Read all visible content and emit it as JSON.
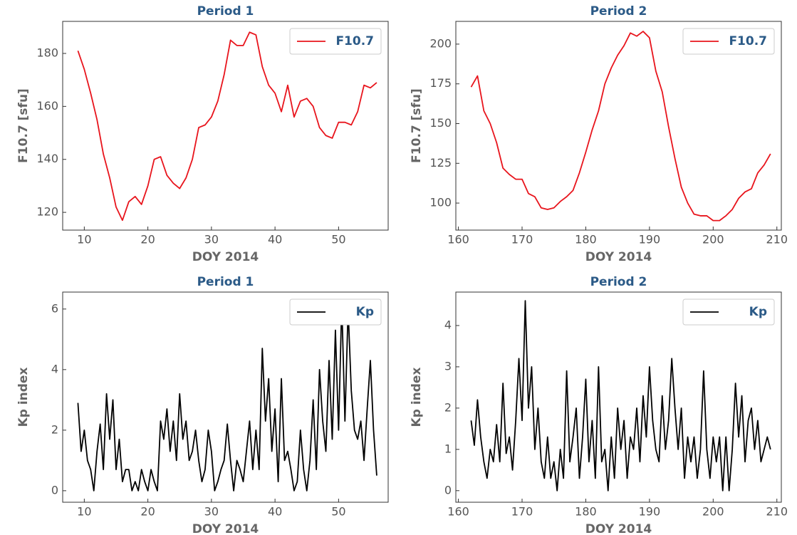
{
  "chart_data": [
    {
      "type": "line",
      "title": "Period 1",
      "x_label": "DOY 2014",
      "y_label": "F10.7 [sfu]",
      "legend": "upper right",
      "xlim": [
        6.6,
        57.8
      ],
      "ylim": [
        113.3,
        192.1
      ],
      "xticks": [
        10,
        20,
        30,
        40,
        50
      ],
      "yticks": [
        120,
        140,
        160,
        180
      ],
      "x": [
        9,
        10,
        11,
        12,
        13,
        14,
        15,
        16,
        17,
        18,
        19,
        20,
        21,
        22,
        23,
        24,
        25,
        26,
        27,
        28,
        29,
        30,
        31,
        32,
        33,
        34,
        35,
        36,
        37,
        38,
        39,
        40,
        41,
        42,
        43,
        44,
        45,
        46,
        47,
        48,
        49,
        50,
        51,
        52,
        53,
        54,
        55,
        56
      ],
      "series": [
        {
          "name": "F10.7",
          "color": "#e8141c",
          "values": [
            181,
            174,
            165,
            155,
            142,
            133,
            122,
            117,
            124,
            126,
            123,
            130,
            140,
            141,
            134,
            131,
            129,
            133,
            140,
            152,
            153,
            156,
            162,
            172,
            185,
            183,
            183,
            188,
            187,
            175,
            168,
            165,
            158,
            168,
            156,
            162,
            163,
            160,
            152,
            149,
            148,
            154,
            154,
            153,
            158,
            168,
            167,
            169
          ]
        }
      ]
    },
    {
      "type": "line",
      "title": "Period 2",
      "x_label": "DOY 2014",
      "y_label": "F10.7 [sfu]",
      "legend": "upper right",
      "xlim": [
        159.6,
        210.7
      ],
      "ylim": [
        83,
        214.3
      ],
      "xticks": [
        160,
        170,
        180,
        190,
        200,
        210
      ],
      "yticks": [
        100,
        125,
        150,
        175,
        200
      ],
      "x": [
        162,
        163,
        164,
        165,
        166,
        167,
        168,
        169,
        170,
        171,
        172,
        173,
        174,
        175,
        176,
        177,
        178,
        179,
        180,
        181,
        182,
        183,
        184,
        185,
        186,
        187,
        188,
        189,
        190,
        191,
        192,
        193,
        194,
        195,
        196,
        197,
        198,
        199,
        200,
        201,
        202,
        203,
        204,
        205,
        206,
        207,
        208,
        209
      ],
      "series": [
        {
          "name": "F10.7",
          "color": "#e8141c",
          "values": [
            173,
            180,
            158,
            150,
            138,
            122,
            118,
            115,
            115,
            106,
            104,
            97,
            96,
            97,
            101,
            104,
            108,
            119,
            132,
            146,
            158,
            175,
            185,
            193,
            199,
            207,
            205,
            208,
            204,
            183,
            170,
            148,
            128,
            110,
            100,
            93,
            92,
            92,
            89,
            89,
            92,
            96,
            103,
            107,
            109,
            119,
            124,
            131
          ]
        }
      ]
    },
    {
      "type": "line",
      "title": "Period 1",
      "x_label": "DOY 2014",
      "y_label": "Kp index",
      "legend": "upper right",
      "xlim": [
        6.6,
        57.8
      ],
      "ylim": [
        -0.38,
        6.56
      ],
      "xticks": [
        10,
        20,
        30,
        40,
        50
      ],
      "yticks": [
        0,
        2,
        4,
        6
      ],
      "x": [
        9,
        9.5,
        10,
        10.5,
        11,
        11.5,
        12,
        12.5,
        13,
        13.5,
        14,
        14.5,
        15,
        15.5,
        16,
        16.5,
        17,
        17.5,
        18,
        18.5,
        19,
        19.5,
        20,
        20.5,
        21,
        21.5,
        22,
        22.5,
        23,
        23.5,
        24,
        24.5,
        25,
        25.5,
        26,
        26.5,
        27,
        27.5,
        28,
        28.5,
        29,
        29.5,
        30,
        30.5,
        31,
        31.5,
        32,
        32.5,
        33,
        33.5,
        34,
        34.5,
        35,
        35.5,
        36,
        36.5,
        37,
        37.5,
        38,
        38.5,
        39,
        39.5,
        40,
        40.5,
        41,
        41.5,
        42,
        42.5,
        43,
        43.5,
        44,
        44.5,
        45,
        45.5,
        46,
        46.5,
        47,
        47.5,
        48,
        48.5,
        49,
        49.5,
        50,
        50.5,
        51,
        51.5,
        52,
        52.5,
        53,
        53.5,
        54,
        54.5,
        55,
        55.5,
        56
      ],
      "series": [
        {
          "name": "Kp",
          "color": "#000000",
          "values": [
            2.9,
            1.3,
            2.0,
            1.0,
            0.7,
            0.0,
            1.3,
            2.2,
            0.7,
            3.2,
            1.7,
            3.0,
            0.7,
            1.7,
            0.3,
            0.7,
            0.7,
            0.0,
            0.3,
            0.0,
            0.7,
            0.3,
            0.0,
            0.7,
            0.3,
            0.0,
            2.3,
            1.7,
            2.7,
            1.3,
            2.3,
            1.0,
            3.2,
            1.7,
            2.3,
            1.0,
            1.3,
            2.0,
            1.0,
            0.3,
            0.7,
            2.0,
            1.3,
            0.0,
            0.3,
            0.7,
            1.0,
            2.2,
            1.0,
            0.0,
            1.0,
            0.7,
            0.3,
            1.3,
            2.3,
            0.7,
            2.0,
            0.7,
            4.7,
            2.3,
            3.7,
            1.3,
            2.7,
            0.3,
            3.7,
            1.0,
            1.3,
            0.7,
            0.0,
            0.3,
            2.0,
            0.7,
            0.0,
            1.0,
            3.0,
            0.7,
            4.0,
            2.3,
            1.3,
            4.3,
            1.7,
            5.3,
            2.0,
            6.2,
            2.3,
            6.0,
            3.3,
            2.0,
            1.7,
            2.3,
            1.0,
            2.7,
            4.3,
            2.0,
            0.5
          ]
        }
      ]
    },
    {
      "type": "line",
      "title": "Period 2",
      "x_label": "DOY 2014",
      "y_label": "Kp index",
      "legend": "upper right",
      "xlim": [
        159.6,
        210.7
      ],
      "ylim": [
        -0.28,
        4.81
      ],
      "xticks": [
        160,
        170,
        180,
        190,
        200,
        210
      ],
      "yticks": [
        0,
        1,
        2,
        3,
        4
      ],
      "x": [
        162,
        162.5,
        163,
        163.5,
        164,
        164.5,
        165,
        165.5,
        166,
        166.5,
        167,
        167.5,
        168,
        168.5,
        169,
        169.5,
        170,
        170.5,
        171,
        171.5,
        172,
        172.5,
        173,
        173.5,
        174,
        174.5,
        175,
        175.5,
        176,
        176.5,
        177,
        177.5,
        178,
        178.5,
        179,
        179.5,
        180,
        180.5,
        181,
        181.5,
        182,
        182.5,
        183,
        183.5,
        184,
        184.5,
        185,
        185.5,
        186,
        186.5,
        187,
        187.5,
        188,
        188.5,
        189,
        189.5,
        190,
        190.5,
        191,
        191.5,
        192,
        192.5,
        193,
        193.5,
        194,
        194.5,
        195,
        195.5,
        196,
        196.5,
        197,
        197.5,
        198,
        198.5,
        199,
        199.5,
        200,
        200.5,
        201,
        201.5,
        202,
        202.5,
        203,
        203.5,
        204,
        204.5,
        205,
        205.5,
        206,
        206.5,
        207,
        207.5,
        208,
        208.5,
        209
      ],
      "series": [
        {
          "name": "Kp",
          "color": "#000000",
          "values": [
            1.7,
            1.1,
            2.2,
            1.3,
            0.7,
            0.3,
            1.0,
            0.7,
            1.6,
            0.7,
            2.6,
            0.9,
            1.3,
            0.5,
            1.7,
            3.2,
            1.7,
            4.6,
            2.0,
            3.0,
            1.0,
            2.0,
            0.7,
            0.3,
            1.3,
            0.3,
            0.7,
            0.0,
            1.0,
            0.3,
            2.9,
            0.7,
            1.3,
            2.0,
            0.3,
            1.3,
            2.7,
            0.7,
            1.7,
            0.3,
            3.0,
            0.7,
            1.0,
            0.0,
            1.3,
            0.3,
            2.0,
            1.0,
            1.7,
            0.3,
            1.3,
            1.0,
            2.0,
            0.7,
            2.3,
            1.3,
            3.0,
            1.7,
            1.0,
            0.7,
            2.3,
            1.0,
            1.7,
            3.2,
            2.0,
            1.0,
            2.0,
            0.3,
            1.3,
            0.7,
            1.3,
            0.3,
            1.0,
            2.9,
            1.0,
            0.3,
            1.3,
            0.7,
            1.3,
            0.0,
            1.3,
            0.0,
            1.0,
            2.6,
            1.3,
            2.3,
            0.7,
            1.7,
            2.0,
            1.0,
            1.7,
            0.7,
            1.0,
            1.3,
            1.0
          ]
        }
      ]
    }
  ]
}
